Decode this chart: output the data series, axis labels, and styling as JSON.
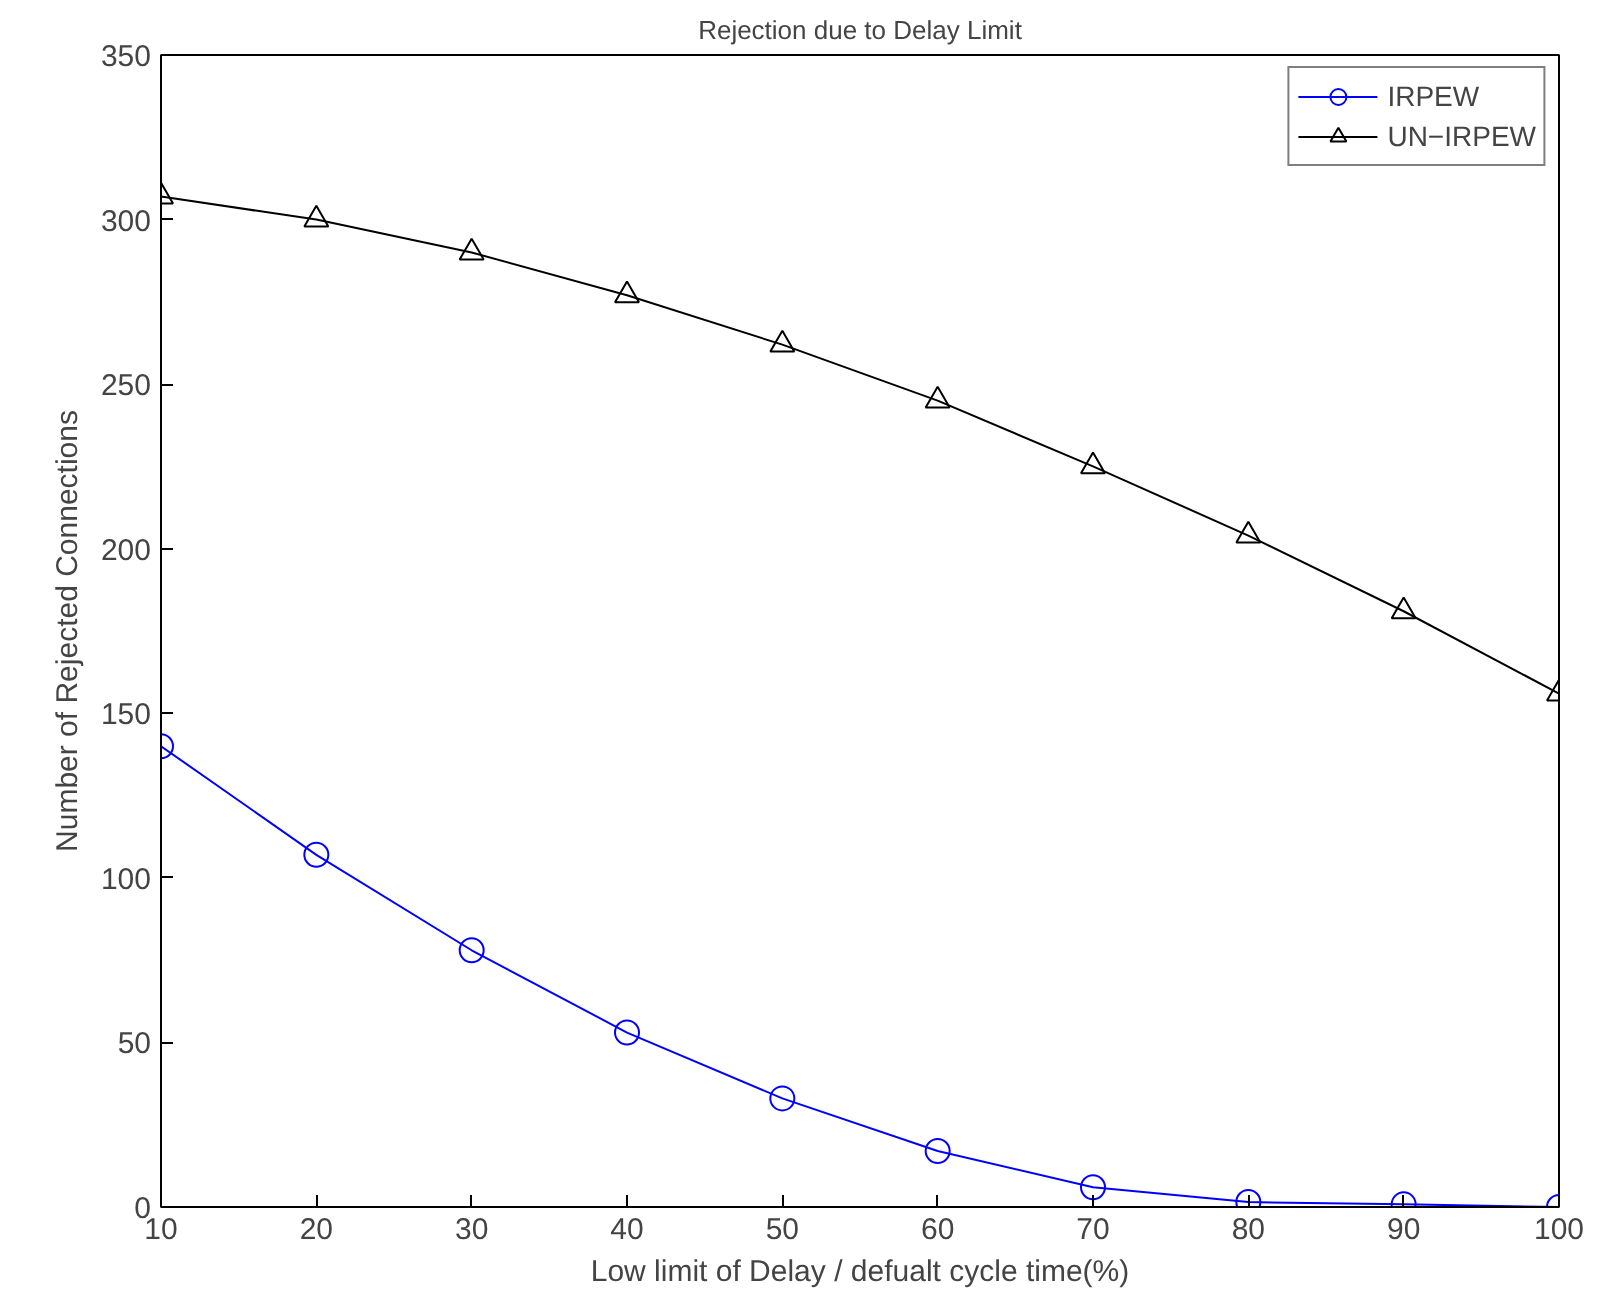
{
  "chart_data": {
    "type": "line",
    "title": "Rejection due to Delay Limit",
    "xlabel": "Low limit of Delay / defualt cycle time(%)",
    "ylabel": "Number of Rejected Connections",
    "x": [
      10,
      20,
      30,
      40,
      50,
      60,
      70,
      80,
      90,
      100
    ],
    "series": [
      {
        "name": "IRPEW",
        "color": "#0000ff",
        "marker": "circle",
        "values": [
          140,
          107,
          78,
          53,
          33,
          17,
          6,
          1.5,
          0.8,
          0
        ]
      },
      {
        "name": "UN−IRPEW",
        "color": "#000000",
        "marker": "triangle",
        "values": [
          307,
          300,
          290,
          277,
          262,
          245,
          225,
          204,
          181,
          156
        ]
      }
    ],
    "xlim": [
      10,
      100
    ],
    "xticks": [
      10,
      20,
      30,
      40,
      50,
      60,
      70,
      80,
      90,
      100
    ],
    "ylim": [
      0,
      350
    ],
    "yticks": [
      0,
      50,
      100,
      150,
      200,
      250,
      300,
      350
    ],
    "grid": false,
    "legend": "top right",
    "line_style": "solid"
  }
}
